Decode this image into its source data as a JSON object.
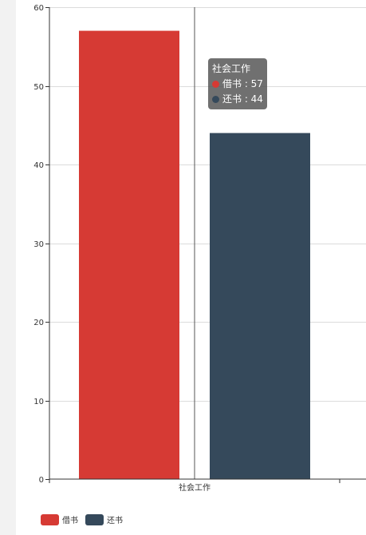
{
  "chart_data": {
    "type": "bar",
    "categories": [
      "社会工作"
    ],
    "series": [
      {
        "name": "借书",
        "values": [
          57
        ],
        "color": "#d63a34"
      },
      {
        "name": "还书",
        "values": [
          44
        ],
        "color": "#35495b"
      }
    ],
    "ylim": [
      0,
      60
    ],
    "yticks": [
      0,
      10,
      20,
      30,
      40,
      50,
      60
    ],
    "grid": true,
    "legend_position": "bottom-left"
  },
  "tooltip": {
    "title": "社会工作",
    "rows": [
      {
        "label": "借书 : 57",
        "color": "#d63a34"
      },
      {
        "label": "还书 : 44",
        "color": "#35495b"
      }
    ]
  },
  "legend": [
    {
      "label": "借书",
      "color": "#d63a34"
    },
    {
      "label": "还书",
      "color": "#35495b"
    }
  ]
}
